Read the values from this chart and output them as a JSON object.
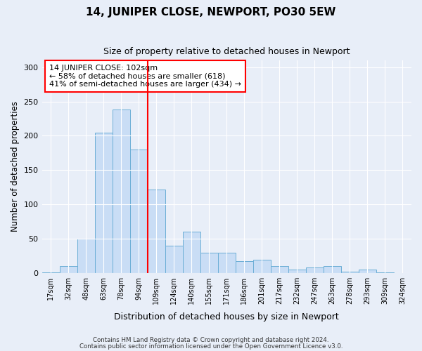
{
  "title": "14, JUNIPER CLOSE, NEWPORT, PO30 5EW",
  "subtitle": "Size of property relative to detached houses in Newport",
  "xlabel": "Distribution of detached houses by size in Newport",
  "ylabel": "Number of detached properties",
  "categories": [
    "17sqm",
    "32sqm",
    "48sqm",
    "63sqm",
    "78sqm",
    "94sqm",
    "109sqm",
    "124sqm",
    "140sqm",
    "155sqm",
    "171sqm",
    "186sqm",
    "201sqm",
    "217sqm",
    "232sqm",
    "247sqm",
    "263sqm",
    "278sqm",
    "293sqm",
    "309sqm",
    "324sqm"
  ],
  "bar_heights": [
    1,
    10,
    50,
    205,
    238,
    180,
    122,
    40,
    60,
    30,
    30,
    18,
    20,
    10,
    5,
    8,
    10,
    2,
    5,
    1,
    0
  ],
  "bar_color": "#c9ddf5",
  "bar_edge_color": "#6baed6",
  "vline_x": 5.5,
  "vline_color": "red",
  "annotation_text": "14 JUNIPER CLOSE: 102sqm\n← 58% of detached houses are smaller (618)\n41% of semi-detached houses are larger (434) →",
  "annotation_box_color": "white",
  "annotation_box_edge": "red",
  "ylim": [
    0,
    310
  ],
  "yticks": [
    0,
    50,
    100,
    150,
    200,
    250,
    300
  ],
  "footer_line1": "Contains HM Land Registry data © Crown copyright and database right 2024.",
  "footer_line2": "Contains public sector information licensed under the Open Government Licence v3.0.",
  "bg_color": "#e8eef8",
  "plot_bg_color": "#e8eef8",
  "title_fontsize": 11,
  "subtitle_fontsize": 9
}
